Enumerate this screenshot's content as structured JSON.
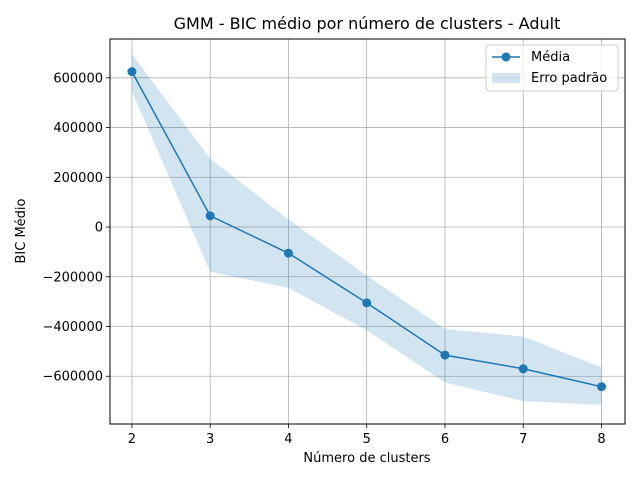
{
  "chart_data": {
    "type": "line",
    "title": "GMM - BIC médio por número de clusters - Adult",
    "xlabel": "Número de clusters",
    "ylabel": "BIC Médio",
    "x": [
      2,
      3,
      4,
      5,
      6,
      7,
      8
    ],
    "xticks": [
      "2",
      "3",
      "4",
      "5",
      "6",
      "7",
      "8"
    ],
    "yticks": [
      "−600000",
      "−400000",
      "−200000",
      "0",
      "200000",
      "400000",
      "600000"
    ],
    "ytick_values": [
      -600000,
      -400000,
      -200000,
      0,
      200000,
      400000,
      600000
    ],
    "xlim": [
      1.72,
      8.3
    ],
    "ylim": [
      -792000,
      756000
    ],
    "grid": true,
    "legend_position": "top-right",
    "series": [
      {
        "name": "Média",
        "kind": "line-marker",
        "color": "#1f77b4",
        "values": [
          625000,
          45000,
          -105000,
          -305000,
          -515000,
          -570000,
          -642000
        ]
      },
      {
        "name": "Erro padrão",
        "kind": "band",
        "color": "#1f77b4",
        "upper": [
          695000,
          275000,
          30000,
          -195000,
          -410000,
          -440000,
          -565000
        ],
        "lower": [
          545000,
          -180000,
          -245000,
          -415000,
          -625000,
          -700000,
          -715000
        ]
      }
    ]
  }
}
